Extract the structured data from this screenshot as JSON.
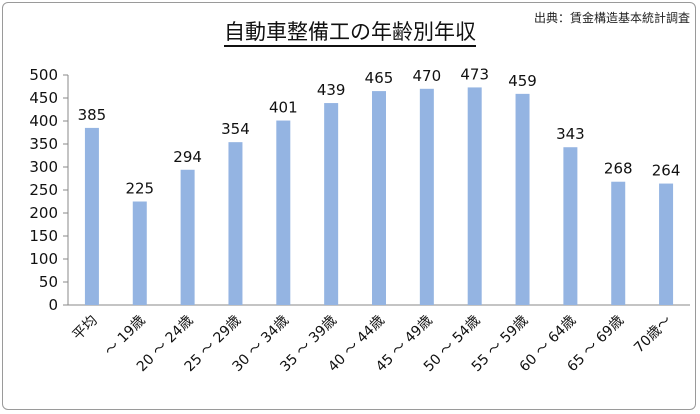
{
  "source_note": "出典：賃金構造基本統計調査",
  "chart_data": {
    "type": "bar",
    "title": "自動車整備工の年齢別年収",
    "categories": [
      "平均",
      "～ 19歳",
      "20 ～ 24歳",
      "25 ～ 29歳",
      "30 ～ 34歳",
      "35 ～ 39歳",
      "40 ～ 44歳",
      "45 ～ 49歳",
      "50 ～ 54歳",
      "55 ～ 59歳",
      "60 ～ 64歳",
      "65 ～ 69歳",
      "70歳～"
    ],
    "values": [
      385,
      225,
      294,
      354,
      401,
      439,
      465,
      470,
      473,
      459,
      343,
      268,
      264
    ],
    "ylim": [
      0,
      500
    ],
    "yticks": [
      0,
      50,
      100,
      150,
      200,
      250,
      300,
      350,
      400,
      450,
      500
    ],
    "xlabel": "",
    "ylabel": "",
    "grid": false,
    "bar_color": "#94b4e2"
  }
}
